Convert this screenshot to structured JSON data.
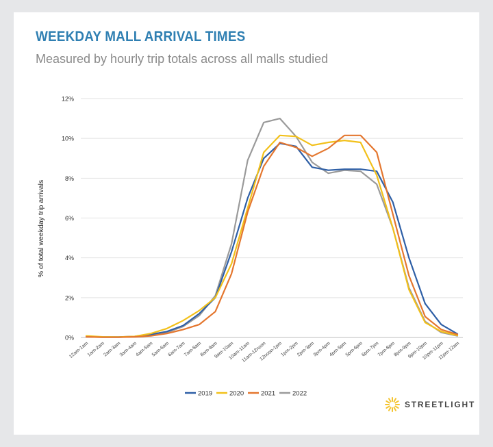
{
  "chart_data": {
    "type": "line",
    "title": "WEEKDAY MALL ARRIVAL TIMES",
    "subtitle": "Measured by hourly trip totals across all malls studied",
    "ylabel": "% of total weekday trip arrivals",
    "xlabel": "",
    "ylim": [
      0,
      12
    ],
    "yticks": [
      "0%",
      "2%",
      "4%",
      "6%",
      "8%",
      "10%",
      "12%"
    ],
    "grid": true,
    "legend_position": "bottom-center",
    "categories": [
      "12am-1am",
      "1am-2am",
      "2am-3am",
      "3am-4am",
      "4am-5am",
      "5am-6am",
      "6am-7am",
      "7am-8am",
      "8am-9am",
      "9am-10am",
      "10am-11am",
      "11am-12noon",
      "12noon-1pm",
      "1pm-2pm",
      "2pm-3pm",
      "3pm-4pm",
      "4pm-5pm",
      "5pm-6pm",
      "6pm-7pm",
      "7pm-8pm",
      "8pm-9pm",
      "9pm-10pm",
      "10pm-11pm",
      "11pm-12am"
    ],
    "series": [
      {
        "name": "2019",
        "color": "#2e5fa6",
        "values": [
          0.05,
          0.02,
          0.02,
          0.05,
          0.15,
          0.3,
          0.6,
          1.2,
          2.0,
          4.3,
          7.0,
          9.0,
          9.75,
          9.6,
          8.55,
          8.4,
          8.45,
          8.45,
          8.35,
          6.8,
          4.0,
          1.7,
          0.65,
          0.18
        ]
      },
      {
        "name": "2020",
        "color": "#f2c01a",
        "values": [
          0.08,
          0.03,
          0.02,
          0.05,
          0.2,
          0.45,
          0.85,
          1.35,
          2.0,
          3.7,
          6.5,
          9.3,
          10.15,
          10.1,
          9.65,
          9.8,
          9.9,
          9.8,
          8.15,
          5.5,
          2.4,
          0.75,
          0.3,
          0.1
        ]
      },
      {
        "name": "2021",
        "color": "#e4762e",
        "values": [
          0.03,
          0.01,
          0.01,
          0.03,
          0.08,
          0.2,
          0.4,
          0.65,
          1.3,
          3.2,
          6.3,
          8.6,
          9.8,
          9.55,
          9.1,
          9.5,
          10.15,
          10.15,
          9.3,
          6.2,
          3.1,
          1.05,
          0.4,
          0.15
        ]
      },
      {
        "name": "2022",
        "color": "#9a9a9a",
        "values": [
          0.03,
          0.01,
          0.01,
          0.04,
          0.1,
          0.25,
          0.55,
          1.1,
          2.1,
          4.7,
          8.9,
          10.8,
          11.0,
          10.1,
          8.8,
          8.25,
          8.4,
          8.35,
          7.7,
          5.5,
          2.5,
          0.8,
          0.25,
          0.08
        ]
      }
    ]
  },
  "branding": {
    "logo_text": "STREETLIGHT",
    "logo_color": "#f4c430"
  }
}
